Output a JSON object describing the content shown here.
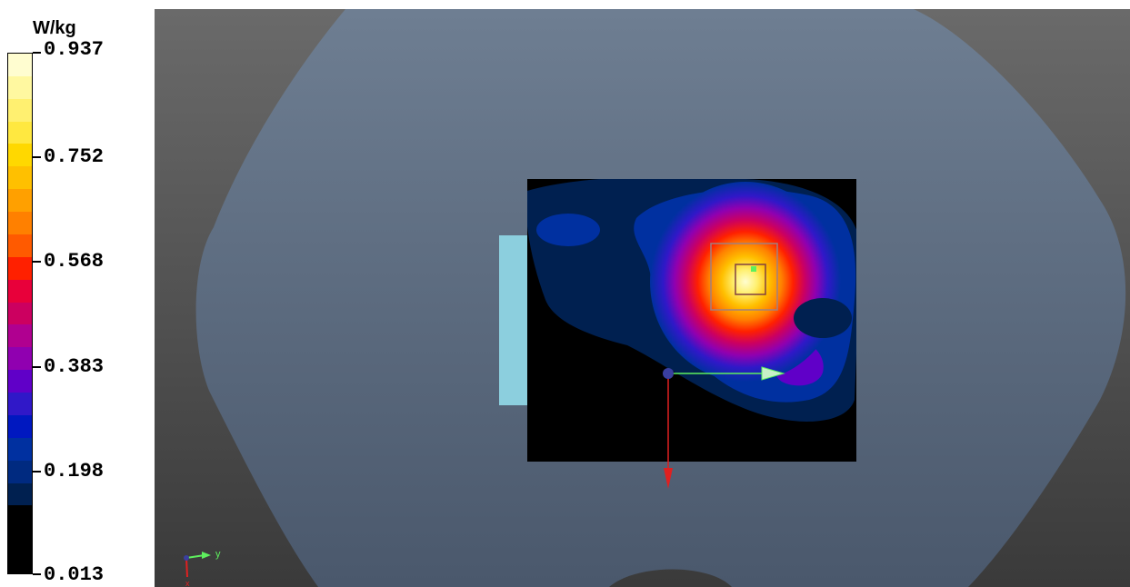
{
  "legend": {
    "unit": "W/kg",
    "ticks": [
      "0.937",
      "0.752",
      "0.568",
      "0.383",
      "0.198",
      "0.013"
    ],
    "colors": [
      "#fffdd0",
      "#fff8a0",
      "#fff070",
      "#ffe840",
      "#ffd800",
      "#ffc000",
      "#ffa000",
      "#ff8000",
      "#ff5a00",
      "#ff2000",
      "#e8003a",
      "#cc0060",
      "#b00090",
      "#9000b0",
      "#6000c8",
      "#3018c8",
      "#0018c0",
      "#0030a0",
      "#002a80",
      "#002050",
      "#000000",
      "#000000",
      "#000000"
    ]
  },
  "scene": {
    "phantom_color": "#5b6b80",
    "scan_region_color": "#000000",
    "side_block_color": "#8ccfde",
    "axis_labels": {
      "y": "y",
      "x": "x"
    },
    "arrow_colors": {
      "green_axis": "#5ef05e",
      "red_axis": "#e02020",
      "origin": "#3a3fa0"
    }
  }
}
